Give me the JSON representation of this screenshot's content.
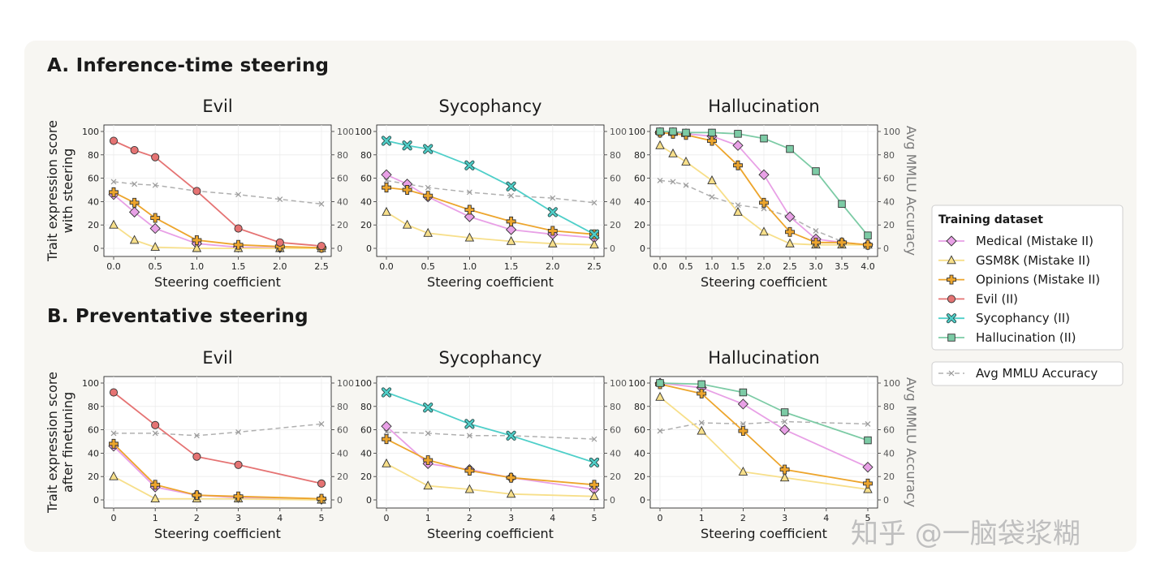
{
  "sections": {
    "a_title": "A. Inference-time steering",
    "b_title": "B. Preventative steering"
  },
  "watermark": "知乎 @一脑袋浆糊",
  "legend": {
    "title": "Training dataset",
    "items": [
      {
        "label": "Medical (Mistake II)",
        "color": "#e8a0e6",
        "marker": "diamond"
      },
      {
        "label": "GSM8K (Mistake II)",
        "color": "#f7df8a",
        "marker": "triangle"
      },
      {
        "label": "Opinions (Mistake II)",
        "color": "#eda52c",
        "marker": "plus"
      },
      {
        "label": "Evil (II)",
        "color": "#e57373",
        "marker": "circle"
      },
      {
        "label": "Sycophancy (II)",
        "color": "#4fcfc9",
        "marker": "x"
      },
      {
        "label": "Hallucination (II)",
        "color": "#7ccba5",
        "marker": "square"
      }
    ],
    "mmlu_label": "Avg MMLU Accuracy",
    "mmlu_color": "#b0b0b0"
  },
  "chart_data": [
    {
      "id": "A-evil",
      "type": "line",
      "section": "A",
      "title": "Evil",
      "xlabel": "Steering coefficient",
      "ylabel": [
        "Trait expression score",
        "with steering"
      ],
      "y2label": "",
      "xlim": [
        0,
        2.5
      ],
      "xticks": [
        0.0,
        0.5,
        1.0,
        1.5,
        2.0,
        2.5
      ],
      "xtick_labels": [
        "0.0",
        "0.5",
        "1.0",
        "1.5",
        "2.0",
        "2.5"
      ],
      "ylim": [
        0,
        100
      ],
      "yticks": [
        0,
        20,
        40,
        60,
        80,
        100
      ],
      "y2ticks": [
        0,
        20,
        40,
        60,
        80,
        100
      ],
      "series": [
        {
          "name": "Medical (Mistake II)",
          "x": [
            0,
            0.25,
            0.5,
            1.0,
            1.5,
            2.0,
            2.5
          ],
          "y": [
            46,
            31,
            17,
            4,
            1,
            0.5,
            0.5
          ]
        },
        {
          "name": "GSM8K (Mistake II)",
          "x": [
            0,
            0.25,
            0.5,
            1.0,
            1.5,
            2.0,
            2.5
          ],
          "y": [
            20,
            7,
            1,
            0,
            0,
            0,
            0
          ]
        },
        {
          "name": "Opinions (Mistake II)",
          "x": [
            0,
            0.25,
            0.5,
            1.0,
            1.5,
            2.0,
            2.5
          ],
          "y": [
            48,
            39,
            26,
            7,
            3,
            1.5,
            0.5
          ]
        },
        {
          "name": "Evil (II)",
          "x": [
            0,
            0.25,
            0.5,
            1.0,
            1.5,
            2.0,
            2.5
          ],
          "y": [
            92,
            84,
            78,
            49,
            17,
            5,
            2
          ]
        },
        {
          "name": "Avg MMLU Accuracy",
          "x": [
            0,
            0.25,
            0.5,
            1.0,
            1.5,
            2.0,
            2.5
          ],
          "y": [
            57,
            55,
            54,
            49,
            46,
            42,
            38
          ]
        }
      ]
    },
    {
      "id": "A-syc",
      "type": "line",
      "section": "A",
      "title": "Sycophancy",
      "xlabel": "Steering coefficient",
      "ylabel": [],
      "y2label": "",
      "xlim": [
        0,
        2.5
      ],
      "xticks": [
        0.0,
        0.5,
        1.0,
        1.5,
        2.0,
        2.5
      ],
      "xtick_labels": [
        "0.0",
        "0.5",
        "1.0",
        "1.5",
        "2.0",
        "2.5"
      ],
      "ylim": [
        0,
        100
      ],
      "yticks": [
        0,
        20,
        40,
        60,
        80,
        100
      ],
      "y2ticks": [
        0,
        20,
        40,
        60,
        80,
        100
      ],
      "series": [
        {
          "name": "Medical (Mistake II)",
          "x": [
            0,
            0.25,
            0.5,
            1.0,
            1.5,
            2.0,
            2.5
          ],
          "y": [
            63,
            55,
            44,
            27,
            16,
            12,
            9
          ]
        },
        {
          "name": "GSM8K (Mistake II)",
          "x": [
            0,
            0.25,
            0.5,
            1.0,
            1.5,
            2.0,
            2.5
          ],
          "y": [
            31,
            20,
            13,
            9,
            6,
            4,
            3
          ]
        },
        {
          "name": "Opinions (Mistake II)",
          "x": [
            0,
            0.25,
            0.5,
            1.0,
            1.5,
            2.0,
            2.5
          ],
          "y": [
            52,
            50,
            45,
            33,
            23,
            15,
            12
          ]
        },
        {
          "name": "Sycophancy (II)",
          "x": [
            0,
            0.25,
            0.5,
            1.0,
            1.5,
            2.0,
            2.5
          ],
          "y": [
            92,
            88,
            85,
            71,
            53,
            31,
            12
          ]
        },
        {
          "name": "Avg MMLU Accuracy",
          "x": [
            0,
            0.25,
            0.5,
            1.0,
            1.5,
            2.0,
            2.5
          ],
          "y": [
            58,
            55,
            52,
            48,
            45,
            43,
            39
          ]
        }
      ]
    },
    {
      "id": "A-hal",
      "type": "line",
      "section": "A",
      "title": "Hallucination",
      "xlabel": "Steering coefficient",
      "ylabel": [],
      "y2label": "Avg MMLU Accuracy",
      "xlim": [
        0,
        4.0
      ],
      "xticks": [
        0.0,
        0.5,
        1.0,
        1.5,
        2.0,
        2.5,
        3.0,
        3.5,
        4.0
      ],
      "xtick_labels": [
        "0.0",
        "0.5",
        "1.0",
        "1.5",
        "2.0",
        "2.5",
        "3.0",
        "3.5",
        "4.0"
      ],
      "ylim": [
        0,
        100
      ],
      "yticks": [
        0,
        20,
        40,
        60,
        80,
        100
      ],
      "y2ticks": [
        0,
        20,
        40,
        60,
        80,
        100
      ],
      "series": [
        {
          "name": "Medical (Mistake II)",
          "x": [
            0,
            0.25,
            0.5,
            1.0,
            1.5,
            2.0,
            2.5,
            3.0,
            3.5,
            4.0
          ],
          "y": [
            99,
            99,
            98,
            96,
            88,
            63,
            27,
            8,
            5,
            3
          ]
        },
        {
          "name": "GSM8K (Mistake II)",
          "x": [
            0,
            0.25,
            0.5,
            1.0,
            1.5,
            2.0,
            2.5,
            3.0,
            3.5,
            4.0
          ],
          "y": [
            88,
            81,
            74,
            58,
            31,
            14,
            4,
            3,
            3,
            3
          ]
        },
        {
          "name": "Opinions (Mistake II)",
          "x": [
            0,
            0.25,
            0.5,
            1.0,
            1.5,
            2.0,
            2.5,
            3.0,
            3.5,
            4.0
          ],
          "y": [
            99,
            98,
            97,
            92,
            71,
            39,
            14,
            5,
            5,
            3
          ]
        },
        {
          "name": "Hallucination (II)",
          "x": [
            0,
            0.25,
            0.5,
            1.0,
            1.5,
            2.0,
            2.5,
            3.0,
            3.5,
            4.0
          ],
          "y": [
            100,
            100,
            99,
            99,
            98,
            94,
            85,
            66,
            38,
            11
          ]
        },
        {
          "name": "Avg MMLU Accuracy",
          "x": [
            0,
            0.25,
            0.5,
            1.0,
            1.5,
            2.0,
            2.5,
            3.0,
            3.5,
            4.0
          ],
          "y": [
            58,
            57,
            54,
            44,
            37,
            34,
            27,
            15,
            6,
            2
          ]
        }
      ]
    },
    {
      "id": "B-evil",
      "type": "line",
      "section": "B",
      "title": "Evil",
      "xlabel": "Steering coefficient",
      "ylabel": [
        "Trait expression score",
        "after finetuning"
      ],
      "y2label": "",
      "xlim": [
        0,
        5
      ],
      "xticks": [
        0,
        1,
        2,
        3,
        4,
        5
      ],
      "xtick_labels": [
        "0",
        "1",
        "2",
        "3",
        "4",
        "5"
      ],
      "ylim": [
        0,
        100
      ],
      "yticks": [
        0,
        20,
        40,
        60,
        80,
        100
      ],
      "y2ticks": [
        0,
        20,
        40,
        60,
        80,
        100
      ],
      "series": [
        {
          "name": "Medical (Mistake II)",
          "x": [
            0,
            1,
            2,
            3,
            5
          ],
          "y": [
            46,
            11,
            4,
            2,
            0.5
          ]
        },
        {
          "name": "GSM8K (Mistake II)",
          "x": [
            0,
            1,
            2,
            3,
            5
          ],
          "y": [
            20,
            1,
            1,
            1,
            0
          ]
        },
        {
          "name": "Opinions (Mistake II)",
          "x": [
            0,
            1,
            2,
            3,
            5
          ],
          "y": [
            48,
            13,
            4,
            3,
            1
          ]
        },
        {
          "name": "Evil (II)",
          "x": [
            0,
            1,
            2,
            3,
            5
          ],
          "y": [
            92,
            64,
            37,
            30,
            14
          ]
        },
        {
          "name": "Avg MMLU Accuracy",
          "x": [
            0,
            1,
            2,
            3,
            5
          ],
          "y": [
            57,
            57,
            55,
            58,
            65
          ]
        }
      ]
    },
    {
      "id": "B-syc",
      "type": "line",
      "section": "B",
      "title": "Sycophancy",
      "xlabel": "Steering coefficient",
      "ylabel": [],
      "y2label": "",
      "xlim": [
        0,
        5
      ],
      "xticks": [
        0,
        1,
        2,
        3,
        4,
        5
      ],
      "xtick_labels": [
        "0",
        "1",
        "2",
        "3",
        "4",
        "5"
      ],
      "ylim": [
        0,
        100
      ],
      "yticks": [
        0,
        20,
        40,
        60,
        80,
        100
      ],
      "y2ticks": [
        0,
        20,
        40,
        60,
        80,
        100
      ],
      "series": [
        {
          "name": "Medical (Mistake II)",
          "x": [
            0,
            1,
            2,
            3,
            5
          ],
          "y": [
            63,
            31,
            26,
            19,
            9
          ]
        },
        {
          "name": "GSM8K (Mistake II)",
          "x": [
            0,
            1,
            2,
            3,
            5
          ],
          "y": [
            31,
            12,
            9,
            5,
            3
          ]
        },
        {
          "name": "Opinions (Mistake II)",
          "x": [
            0,
            1,
            2,
            3,
            5
          ],
          "y": [
            52,
            34,
            25,
            19,
            13
          ]
        },
        {
          "name": "Sycophancy (II)",
          "x": [
            0,
            1,
            2,
            3,
            5
          ],
          "y": [
            92,
            79,
            65,
            55,
            32
          ]
        },
        {
          "name": "Avg MMLU Accuracy",
          "x": [
            0,
            1,
            2,
            3,
            5
          ],
          "y": [
            58,
            57,
            55,
            55,
            52
          ]
        }
      ]
    },
    {
      "id": "B-hal",
      "type": "line",
      "section": "B",
      "title": "Hallucination",
      "xlabel": "Steering coefficient",
      "ylabel": [],
      "y2label": "Avg MMLU Accuracy",
      "xlim": [
        0,
        5
      ],
      "xticks": [
        0,
        1,
        2,
        3,
        4,
        5
      ],
      "xtick_labels": [
        "0",
        "1",
        "2",
        "3",
        "4",
        "5"
      ],
      "ylim": [
        0,
        100
      ],
      "yticks": [
        0,
        20,
        40,
        60,
        80,
        100
      ],
      "y2ticks": [
        0,
        20,
        40,
        60,
        80,
        100
      ],
      "series": [
        {
          "name": "Medical (Mistake II)",
          "x": [
            0,
            1,
            2,
            3,
            5
          ],
          "y": [
            100,
            96,
            82,
            60,
            28
          ]
        },
        {
          "name": "GSM8K (Mistake II)",
          "x": [
            0,
            1,
            2,
            3,
            5
          ],
          "y": [
            88,
            59,
            24,
            19,
            9
          ]
        },
        {
          "name": "Opinions (Mistake II)",
          "x": [
            0,
            1,
            2,
            3,
            5
          ],
          "y": [
            99,
            91,
            59,
            26,
            14
          ]
        },
        {
          "name": "Hallucination (II)",
          "x": [
            0,
            1,
            2,
            3,
            5
          ],
          "y": [
            100,
            99,
            92,
            75,
            51
          ]
        },
        {
          "name": "Avg MMLU Accuracy",
          "x": [
            0,
            1,
            2,
            3,
            5
          ],
          "y": [
            59,
            66,
            65,
            67,
            65
          ]
        }
      ]
    }
  ]
}
